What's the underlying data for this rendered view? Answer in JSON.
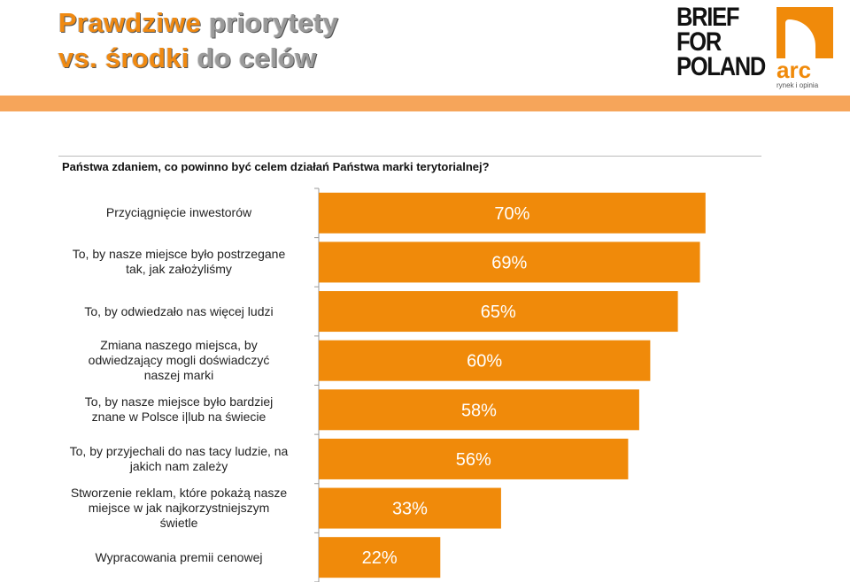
{
  "header": {
    "title": [
      [
        {
          "text": "Prawdziwe",
          "color": "#f08a12"
        },
        {
          "text": "priorytety",
          "color": "#9a9a9a"
        }
      ],
      [
        {
          "text": "vs. środki",
          "color": "#f08a12"
        },
        {
          "text": "do celów",
          "color": "#9a9a9a"
        }
      ]
    ],
    "logo_brief": [
      "BRIEF",
      "FOR",
      "POLAND"
    ],
    "logo_arc": "arc",
    "logo_arc_tagline": "rynek i opinia"
  },
  "chart_data": {
    "type": "hbar",
    "subtitle": "Państwa zdaniem, co powinno być celem działań Państwa marki terytorialnej?",
    "categories": [
      "Przyciągnięcie inwestorów",
      "To, by nasze miejsce było postrzegane\ntak, jak założyliśmy",
      "To, by odwiedzało nas więcej ludzi",
      "Zmiana naszego miejsca, by\nodwiedzający mogli doświadczyć\nnaszej marki",
      "To, by nasze miejsce było bardziej\nznane w Polsce i|lub na świecie",
      "To, by przyjechali do nas tacy ludzie, na\njakich nam zależy",
      "Stworzenie reklam, które pokażą nasze\nmiejsce w jak najkorzystniejszym\nświetle",
      "Wypracowania premii cenowej"
    ],
    "values": [
      70,
      69,
      65,
      60,
      58,
      56,
      33,
      22
    ],
    "value_labels": [
      "70%",
      "69%",
      "65%",
      "60%",
      "58%",
      "56%",
      "33%",
      "22%"
    ],
    "color": "#f08a0a",
    "xlim": [
      0,
      75
    ]
  }
}
